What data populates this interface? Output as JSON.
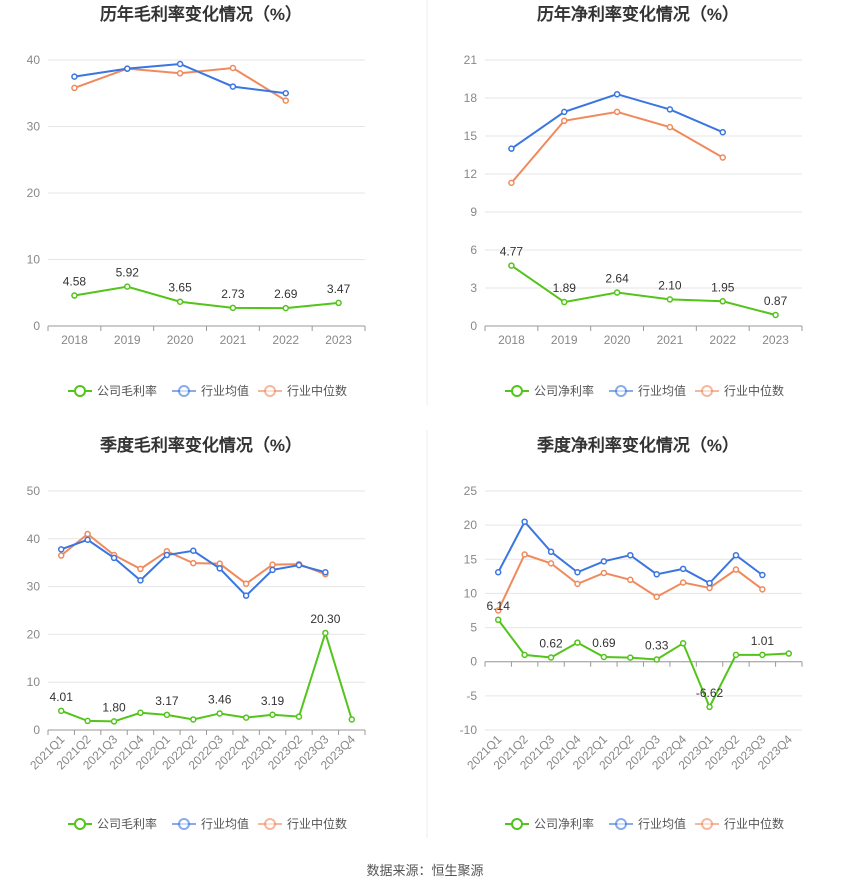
{
  "source": "数据来源：恒生聚源",
  "legend_labels": {
    "gross": [
      "公司毛利率",
      "行业均值",
      "行业中位数"
    ],
    "net": [
      "公司净利率",
      "行业均值",
      "行业中位数"
    ]
  },
  "colors": {
    "company": "#52c41a",
    "industry_avg": "#3a75e0",
    "industry_median": "#f08a5d"
  },
  "chart_data": [
    {
      "type": "line",
      "title": "历年毛利率变化情况（%）",
      "categories": [
        "2018",
        "2019",
        "2020",
        "2021",
        "2022",
        "2023"
      ],
      "ylim": [
        0,
        40
      ],
      "yticks": [
        0,
        10,
        20,
        30,
        40
      ],
      "grid": true,
      "legend_position": "bottom",
      "series": [
        {
          "name": "公司毛利率",
          "role": "company",
          "values": [
            4.58,
            5.92,
            3.65,
            2.73,
            2.69,
            3.47
          ],
          "labels": [
            "4.58",
            "5.92",
            "3.65",
            "2.73",
            "2.69",
            "3.47"
          ]
        },
        {
          "name": "行业均值",
          "role": "industry_avg",
          "values": [
            37.5,
            38.7,
            39.4,
            36.0,
            35.0,
            null
          ]
        },
        {
          "name": "行业中位数",
          "role": "industry_median",
          "values": [
            35.8,
            38.7,
            38.0,
            38.8,
            33.9,
            null
          ]
        }
      ]
    },
    {
      "type": "line",
      "title": "历年净利率变化情况（%）",
      "categories": [
        "2018",
        "2019",
        "2020",
        "2021",
        "2022",
        "2023"
      ],
      "ylim": [
        0,
        21
      ],
      "yticks": [
        0,
        3,
        6,
        9,
        12,
        15,
        18,
        21
      ],
      "grid": true,
      "legend_position": "bottom",
      "series": [
        {
          "name": "公司净利率",
          "role": "company",
          "values": [
            4.77,
            1.89,
            2.64,
            2.1,
            1.95,
            0.87
          ],
          "labels": [
            "4.77",
            "1.89",
            "2.64",
            "2.10",
            "1.95",
            "0.87"
          ]
        },
        {
          "name": "行业均值",
          "role": "industry_avg",
          "values": [
            14.0,
            16.9,
            18.3,
            17.1,
            15.3,
            null
          ]
        },
        {
          "name": "行业中位数",
          "role": "industry_median",
          "values": [
            11.3,
            16.2,
            16.9,
            15.7,
            13.3,
            null
          ]
        }
      ]
    },
    {
      "type": "line",
      "title": "季度毛利率变化情况（%）",
      "categories": [
        "2021Q1",
        "2021Q2",
        "2021Q3",
        "2021Q4",
        "2022Q1",
        "2022Q2",
        "2022Q3",
        "2022Q4",
        "2023Q1",
        "2023Q2",
        "2023Q3",
        "2023Q4"
      ],
      "ylim": [
        0,
        50
      ],
      "yticks": [
        0,
        10,
        20,
        30,
        40,
        50
      ],
      "grid": true,
      "legend_position": "bottom",
      "series": [
        {
          "name": "公司毛利率",
          "role": "company",
          "values": [
            4.01,
            1.9,
            1.8,
            3.6,
            3.17,
            2.2,
            3.46,
            2.6,
            3.19,
            2.8,
            20.3,
            2.2
          ],
          "labels": [
            "4.01",
            null,
            "1.80",
            null,
            "3.17",
            null,
            "3.46",
            null,
            "3.19",
            null,
            "20.30",
            null
          ]
        },
        {
          "name": "行业均值",
          "role": "industry_avg",
          "values": [
            37.8,
            39.8,
            36.0,
            31.3,
            36.6,
            37.5,
            33.8,
            28.1,
            33.5,
            34.5,
            33.0,
            null
          ]
        },
        {
          "name": "行业中位数",
          "role": "industry_median",
          "values": [
            36.5,
            41.0,
            36.6,
            33.7,
            37.4,
            34.9,
            34.8,
            30.6,
            34.6,
            34.7,
            32.6,
            null
          ]
        }
      ]
    },
    {
      "type": "line",
      "title": "季度净利率变化情况（%）",
      "categories": [
        "2021Q1",
        "2021Q2",
        "2021Q3",
        "2021Q4",
        "2022Q1",
        "2022Q2",
        "2022Q3",
        "2022Q4",
        "2023Q1",
        "2023Q2",
        "2023Q3",
        "2023Q4"
      ],
      "ylim": [
        -10,
        25
      ],
      "yticks": [
        -10,
        -5,
        0,
        5,
        10,
        15,
        20,
        25
      ],
      "grid": true,
      "legend_position": "bottom",
      "series": [
        {
          "name": "公司净利率",
          "role": "company",
          "values": [
            6.14,
            1.0,
            0.62,
            2.8,
            0.69,
            0.6,
            0.33,
            2.7,
            -6.62,
            1.0,
            1.01,
            1.2
          ],
          "labels": [
            "6.14",
            null,
            "0.62",
            null,
            "0.69",
            null,
            "0.33",
            null,
            "-6.62",
            null,
            "1.01",
            null
          ]
        },
        {
          "name": "行业均值",
          "role": "industry_avg",
          "values": [
            13.1,
            20.5,
            16.1,
            13.1,
            14.7,
            15.6,
            12.8,
            13.6,
            11.5,
            15.6,
            12.7,
            null
          ]
        },
        {
          "name": "行业中位数",
          "role": "industry_median",
          "values": [
            7.5,
            15.7,
            14.4,
            11.4,
            13.0,
            12.0,
            9.5,
            11.6,
            10.8,
            13.5,
            10.6,
            null
          ]
        }
      ]
    }
  ]
}
